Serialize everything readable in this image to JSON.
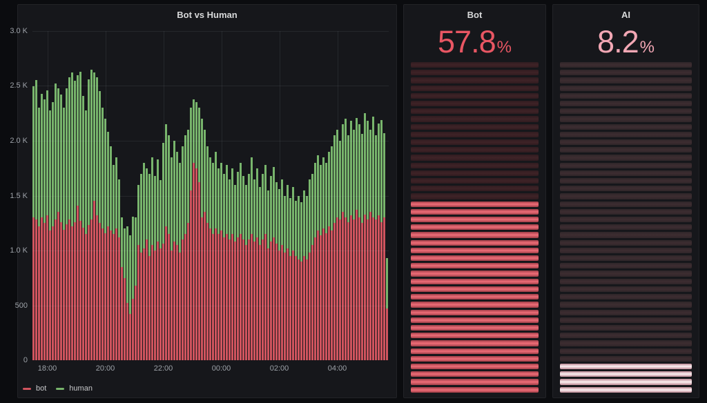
{
  "chart_data": [
    {
      "type": "bar",
      "stacked": true,
      "title": "Bot vs Human",
      "xlabel": "",
      "ylabel": "",
      "ylim": [
        0,
        3000
      ],
      "grid": true,
      "legend_position": "bottom-left",
      "y_tick_values": [
        0,
        500,
        1000,
        1500,
        2000,
        2500,
        3000
      ],
      "y_tick_labels": [
        "0",
        "500",
        "1.0 K",
        "1.5 K",
        "2.0 K",
        "2.5 K",
        "3.0 K"
      ],
      "x_tick_labels": [
        "18:00",
        "20:00",
        "22:00",
        "00:00",
        "02:00",
        "04:00"
      ],
      "x_tick_indices": [
        5,
        26,
        47,
        68,
        89,
        110
      ],
      "x_range_note": "5-minute buckets from ~17:30 to ~05:45",
      "series": [
        {
          "name": "bot",
          "color": "#d0545e",
          "values": [
            1300,
            1280,
            1220,
            1300,
            1250,
            1320,
            1180,
            1220,
            1280,
            1350,
            1260,
            1190,
            1240,
            1280,
            1220,
            1260,
            1410,
            1270,
            1210,
            1150,
            1230,
            1280,
            1450,
            1320,
            1250,
            1200,
            1160,
            1220,
            1180,
            1150,
            1200,
            1120,
            850,
            750,
            520,
            420,
            560,
            680,
            1050,
            980,
            1020,
            1100,
            950,
            1050,
            1000,
            1080,
            1020,
            1060,
            1220,
            1150,
            1000,
            1080,
            1050,
            980,
            1100,
            1150,
            1250,
            1550,
            1800,
            1750,
            1620,
            1300,
            1350,
            1250,
            1200,
            1150,
            1200,
            1150,
            1180,
            1120,
            1150,
            1100,
            1150,
            1080,
            1120,
            1150,
            1100,
            1050,
            1100,
            1150,
            1080,
            1120,
            1050,
            1100,
            1150,
            1020,
            1080,
            1120,
            1060,
            1000,
            1050,
            980,
            1020,
            950,
            1000,
            950,
            920,
            900,
            950,
            920,
            980,
            1050,
            1120,
            1180,
            1140,
            1200,
            1160,
            1220,
            1180,
            1250,
            1300,
            1280,
            1350,
            1300,
            1260,
            1320,
            1280,
            1370,
            1300,
            1250,
            1330,
            1280,
            1350,
            1300,
            1280,
            1320,
            1260,
            1300,
            470
          ]
        },
        {
          "name": "human",
          "color": "#78b56c",
          "values": [
            1200,
            1275,
            1080,
            1130,
            1130,
            1140,
            1100,
            1130,
            1240,
            1130,
            1160,
            1110,
            1240,
            1300,
            1400,
            1290,
            1190,
            1360,
            1200,
            1130,
            1330,
            1370,
            1170,
            1260,
            1200,
            1100,
            1040,
            860,
            770,
            630,
            650,
            530,
            450,
            450,
            700,
            720,
            750,
            620,
            550,
            720,
            780,
            650,
            750,
            800,
            680,
            750,
            620,
            920,
            930,
            900,
            850,
            920,
            850,
            820,
            850,
            900,
            850,
            750,
            580,
            600,
            680,
            900,
            750,
            700,
            650,
            650,
            700,
            600,
            620,
            580,
            630,
            550,
            600,
            520,
            600,
            650,
            580,
            550,
            600,
            700,
            570,
            630,
            530,
            600,
            630,
            530,
            600,
            640,
            560,
            560,
            600,
            520,
            580,
            530,
            580,
            500,
            580,
            540,
            600,
            580,
            670,
            650,
            680,
            690,
            640,
            650,
            640,
            680,
            770,
            800,
            800,
            720,
            800,
            900,
            790,
            860,
            820,
            840,
            850,
            810,
            920,
            900,
            750,
            920,
            770,
            840,
            930,
            770,
            460
          ]
        }
      ]
    },
    {
      "type": "gauge",
      "title": "Bot",
      "value": "57.8",
      "unit": "%",
      "min": 0,
      "max": 100,
      "style": "lcd-vertical",
      "cells": 43,
      "lit_cells": 25,
      "value_color": "#e85663",
      "lit_edge": "#a03e47",
      "lit_mid": "#ef6e79",
      "unlit_edge": "#301c20",
      "unlit_mid": "#3f2327"
    },
    {
      "type": "gauge",
      "title": "AI",
      "value": "8.2",
      "unit": "%",
      "min": 0,
      "max": 100,
      "style": "lcd-vertical",
      "cells": 43,
      "lit_cells": 4,
      "value_color": "#f2a7b4",
      "lit_edge": "#bb8893",
      "lit_mid": "#fdf2f4",
      "unlit_edge": "#2f2629",
      "unlit_mid": "#3d2d31"
    }
  ]
}
